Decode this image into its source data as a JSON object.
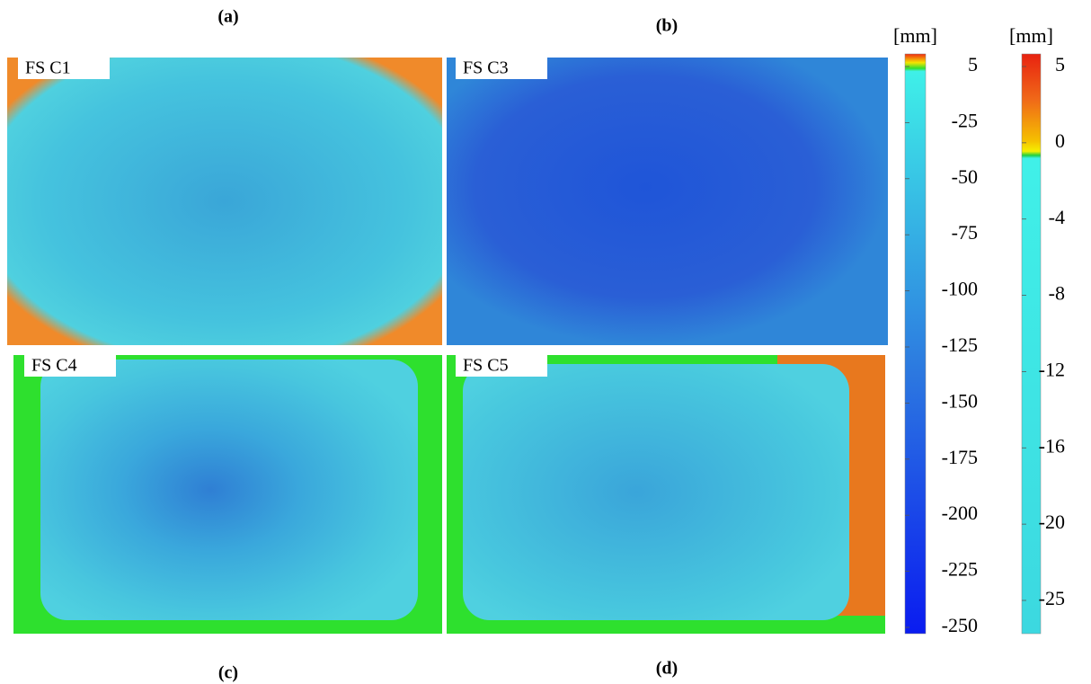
{
  "panels": [
    {
      "letter": "(a)",
      "name": "FS C1"
    },
    {
      "letter": "(b)",
      "name": "FS C3"
    },
    {
      "letter": "(c)",
      "name": "FS C4"
    },
    {
      "letter": "(d)",
      "name": "FS C5"
    }
  ],
  "colorbars": [
    {
      "unit": "[mm]",
      "ticks": [
        5,
        -25,
        -50,
        -75,
        -100,
        -125,
        -150,
        -175,
        -200,
        -225,
        -250
      ]
    },
    {
      "unit": "[mm]",
      "ticks": [
        5,
        0,
        -4,
        -8,
        -12,
        -16,
        -20,
        -25
      ]
    }
  ]
}
